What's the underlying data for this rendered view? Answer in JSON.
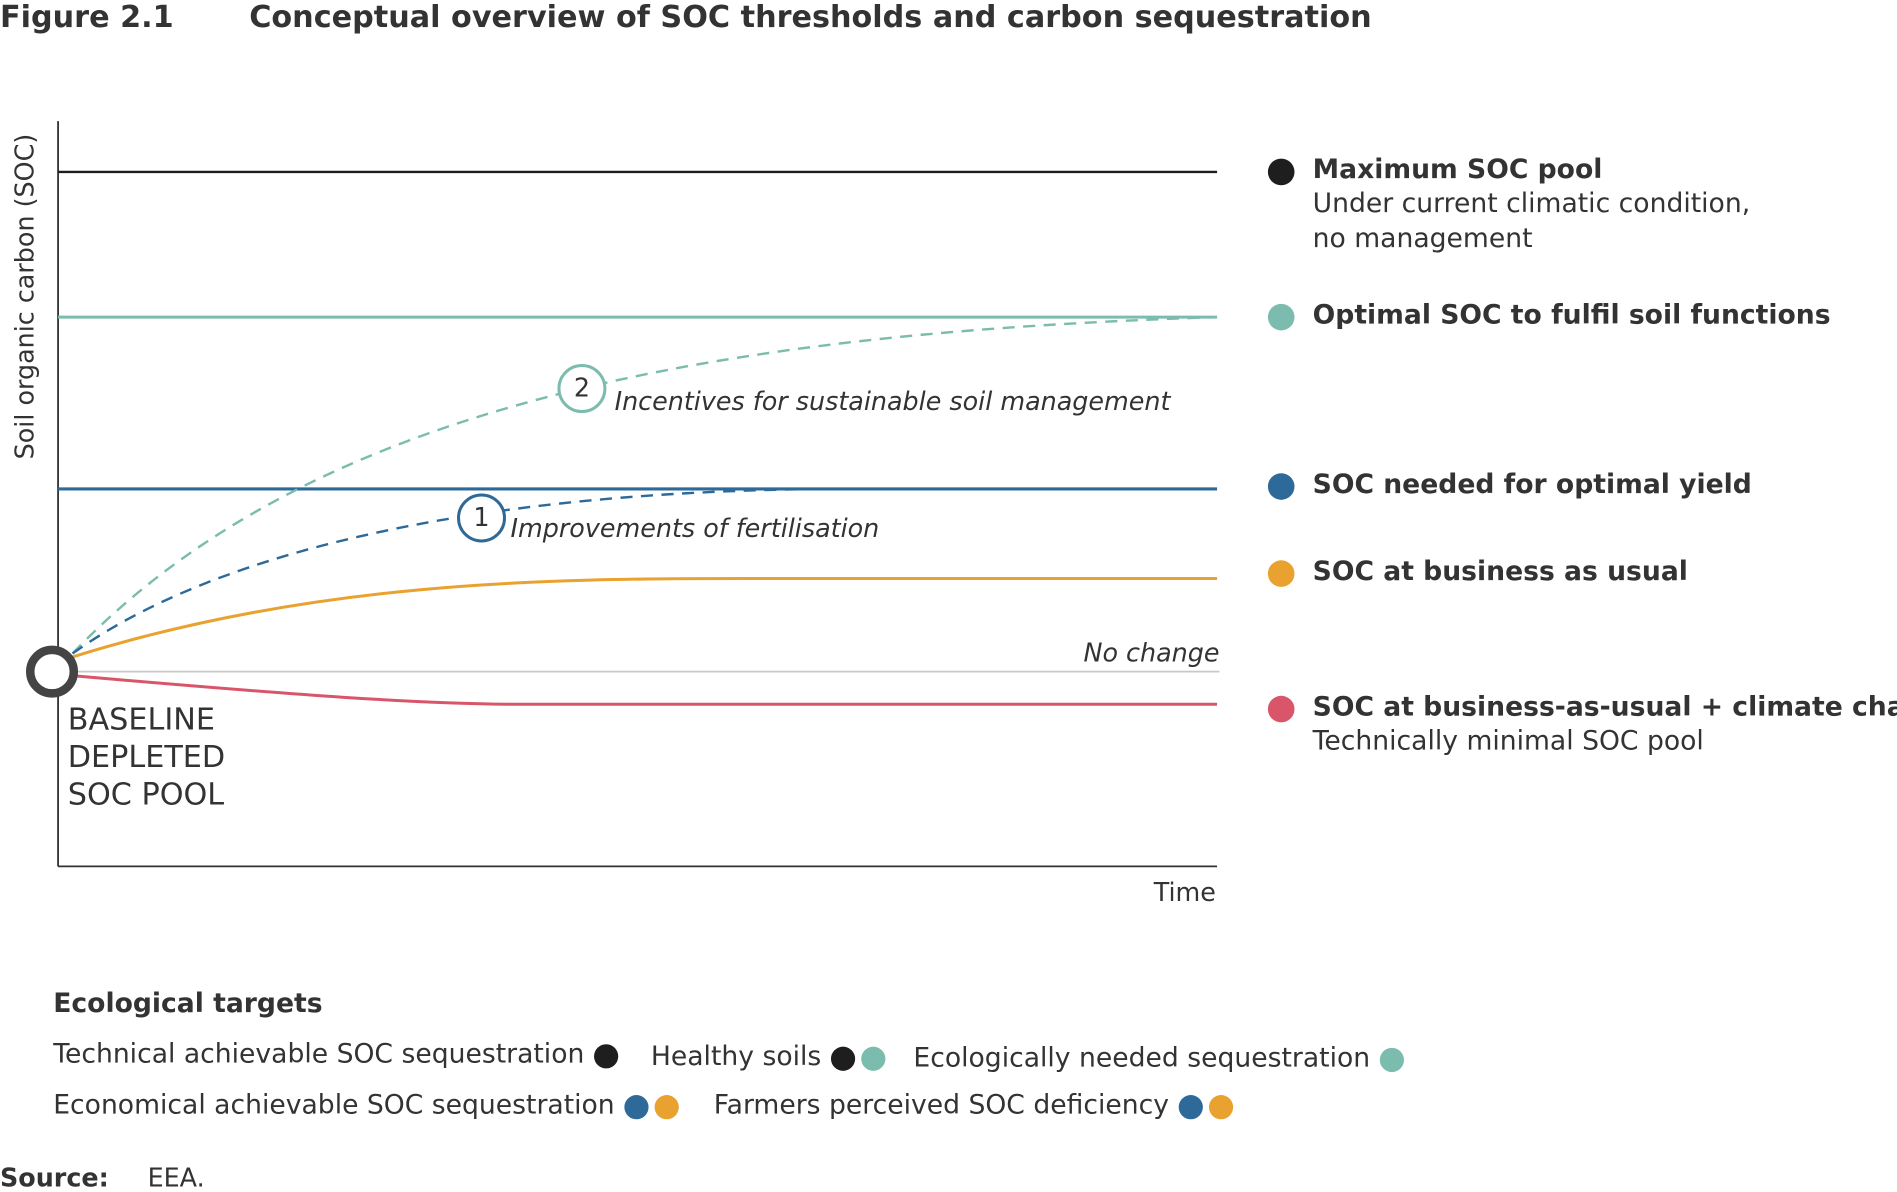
{
  "figure_label": "Figure 2.1",
  "title": "Conceptual overview of SOC thresholds and carbon sequestration",
  "y_axis_label": "Soil organic carbon (SOC)",
  "x_axis_label": "Time",
  "baseline_label": [
    "BASELINE",
    "DEPLETED",
    "SOC POOL"
  ],
  "annotations": {
    "no_change": "No change",
    "path_1": {
      "number": "1",
      "label": "Improvements of fertilisation"
    },
    "path_2": {
      "number": "2",
      "label": "Incentives for sustainable soil management"
    }
  },
  "legend": [
    {
      "title": "Maximum SOC pool",
      "lines": [
        "Under current climatic condition,",
        "no management"
      ],
      "color": "#1e1e1e"
    },
    {
      "title": "Optimal SOC to fulfil soil functions",
      "lines": [],
      "color": "#7bbcae"
    },
    {
      "title": "SOC needed for optimal yield",
      "lines": [],
      "color": "#2e6a99"
    },
    {
      "title": "SOC at business as usual",
      "lines": [],
      "color": "#e9a12f"
    },
    {
      "title": "SOC at business-as-usual + climate change",
      "lines": [
        "Technically minimal SOC pool"
      ],
      "color": "#d9566a"
    }
  ],
  "targets": {
    "title": "Ecological targets",
    "items": [
      {
        "label": "Technical achievable SOC sequestration",
        "colors": [
          "#1e1e1e"
        ]
      },
      {
        "label": "Healthy soils",
        "colors": [
          "#1e1e1e",
          "#7bbcae"
        ]
      },
      {
        "label": "Ecologically needed sequestration",
        "colors": [
          "#7bbcae"
        ]
      },
      {
        "label": "Economical achievable SOC sequestration",
        "colors": [
          "#2e6a99",
          "#e9a12f"
        ]
      },
      {
        "label": "Farmers perceived SOC deficiency",
        "colors": [
          "#2e6a99",
          "#e9a12f"
        ]
      }
    ]
  },
  "source": {
    "label": "Source:",
    "text": "EEA."
  }
}
